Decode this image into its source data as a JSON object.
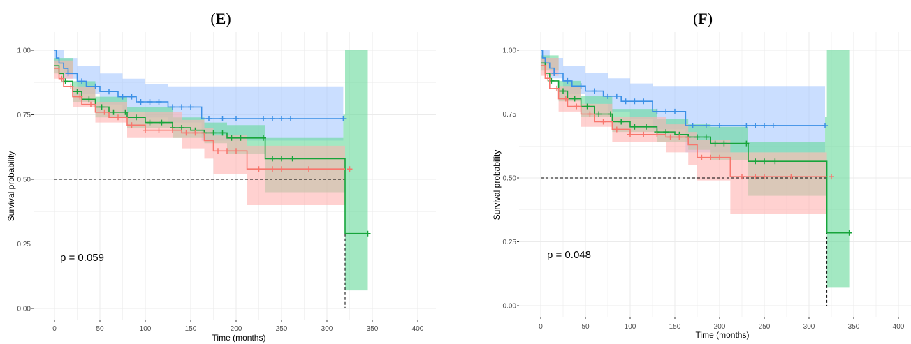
{
  "colors": {
    "red": "#F8766D",
    "green": "#00BA38",
    "blue": "#619CFF",
    "blue_line": "#3A8FE6",
    "green_line": "#17A43B",
    "red_fill": "#FFB3B0",
    "green_fill": "#66D999",
    "blue_fill": "#A6C8FF",
    "grid": "#EBEBEB"
  },
  "chart_data": [
    {
      "panel": "(E)",
      "panel_letter": "E",
      "type": "line",
      "xlabel": "Time (months)",
      "ylabel": "Survival probability",
      "xlim": [
        0,
        400
      ],
      "ylim": [
        0,
        1
      ],
      "x_ticks": [
        "0",
        "50",
        "100",
        "150",
        "200",
        "250",
        "300",
        "350",
        "400"
      ],
      "y_ticks": [
        "0.00",
        "0.25",
        "0.50",
        "0.75",
        "1.00"
      ],
      "annotation": "p = 0.059",
      "median_line": {
        "y": 0.5,
        "x_end": 320
      },
      "grid": true,
      "series": [
        {
          "color_key": "blue",
          "steps": [
            [
              0,
              1.0
            ],
            [
              2,
              0.97
            ],
            [
              5,
              0.95
            ],
            [
              10,
              0.93
            ],
            [
              15,
              0.91
            ],
            [
              25,
              0.88
            ],
            [
              35,
              0.86
            ],
            [
              50,
              0.84
            ],
            [
              70,
              0.82
            ],
            [
              90,
              0.8
            ],
            [
              125,
              0.78
            ],
            [
              162,
              0.735
            ],
            [
              318,
              0.735
            ]
          ],
          "ci_upper": [
            [
              0,
              1.0
            ],
            [
              10,
              0.97
            ],
            [
              25,
              0.94
            ],
            [
              50,
              0.91
            ],
            [
              75,
              0.89
            ],
            [
              100,
              0.87
            ],
            [
              125,
              0.86
            ],
            [
              162,
              0.86
            ],
            [
              318,
              0.86
            ]
          ],
          "ci_lower": [
            [
              0,
              0.95
            ],
            [
              10,
              0.89
            ],
            [
              25,
              0.83
            ],
            [
              50,
              0.79
            ],
            [
              75,
              0.76
            ],
            [
              100,
              0.74
            ],
            [
              125,
              0.72
            ],
            [
              162,
              0.65
            ],
            [
              318,
              0.64
            ]
          ],
          "censor_x": [
            15,
            30,
            45,
            60,
            75,
            85,
            95,
            105,
            115,
            130,
            140,
            150,
            170,
            185,
            200,
            230,
            240,
            250,
            260,
            318
          ]
        },
        {
          "color_key": "green",
          "steps": [
            [
              0,
              0.94
            ],
            [
              5,
              0.91
            ],
            [
              10,
              0.88
            ],
            [
              20,
              0.84
            ],
            [
              30,
              0.81
            ],
            [
              45,
              0.78
            ],
            [
              60,
              0.76
            ],
            [
              80,
              0.74
            ],
            [
              100,
              0.72
            ],
            [
              130,
              0.7
            ],
            [
              150,
              0.69
            ],
            [
              165,
              0.68
            ],
            [
              190,
              0.66
            ],
            [
              232,
              0.58
            ],
            [
              318,
              0.58
            ],
            [
              320,
              0.29
            ],
            [
              345,
              0.29
            ]
          ],
          "ci_upper": [
            [
              0,
              0.97
            ],
            [
              20,
              0.88
            ],
            [
              45,
              0.82
            ],
            [
              80,
              0.78
            ],
            [
              130,
              0.74
            ],
            [
              165,
              0.72
            ],
            [
              190,
              0.71
            ],
            [
              232,
              0.66
            ],
            [
              318,
              0.75
            ],
            [
              320,
              1.0
            ],
            [
              345,
              1.0
            ]
          ],
          "ci_lower": [
            [
              0,
              0.91
            ],
            [
              20,
              0.8
            ],
            [
              45,
              0.74
            ],
            [
              80,
              0.7
            ],
            [
              130,
              0.66
            ],
            [
              165,
              0.64
            ],
            [
              190,
              0.6
            ],
            [
              232,
              0.45
            ],
            [
              318,
              0.45
            ],
            [
              320,
              0.07
            ],
            [
              345,
              0.07
            ]
          ],
          "censor_x": [
            12,
            25,
            38,
            52,
            65,
            78,
            90,
            105,
            118,
            130,
            140,
            155,
            165,
            175,
            185,
            195,
            205,
            230,
            240,
            250,
            262,
            345
          ]
        },
        {
          "color_key": "red",
          "steps": [
            [
              0,
              0.93
            ],
            [
              5,
              0.89
            ],
            [
              10,
              0.86
            ],
            [
              20,
              0.82
            ],
            [
              30,
              0.79
            ],
            [
              45,
              0.76
            ],
            [
              60,
              0.74
            ],
            [
              80,
              0.71
            ],
            [
              100,
              0.69
            ],
            [
              140,
              0.68
            ],
            [
              165,
              0.65
            ],
            [
              175,
              0.61
            ],
            [
              212,
              0.54
            ],
            [
              320,
              0.54
            ]
          ],
          "ci_upper": [
            [
              0,
              0.96
            ],
            [
              20,
              0.86
            ],
            [
              45,
              0.8
            ],
            [
              80,
              0.76
            ],
            [
              140,
              0.73
            ],
            [
              165,
              0.7
            ],
            [
              175,
              0.67
            ],
            [
              212,
              0.63
            ],
            [
              320,
              0.67
            ]
          ],
          "ci_lower": [
            [
              0,
              0.89
            ],
            [
              20,
              0.78
            ],
            [
              45,
              0.72
            ],
            [
              80,
              0.66
            ],
            [
              140,
              0.62
            ],
            [
              165,
              0.58
            ],
            [
              175,
              0.52
            ],
            [
              212,
              0.4
            ],
            [
              320,
              0.4
            ]
          ],
          "censor_x": [
            8,
            18,
            28,
            40,
            55,
            70,
            85,
            100,
            115,
            130,
            145,
            155,
            180,
            190,
            200,
            225,
            240,
            250,
            280,
            325
          ]
        }
      ]
    },
    {
      "panel": "(F)",
      "panel_letter": "F",
      "type": "line",
      "xlabel": "Time (months)",
      "ylabel": "Survival probability",
      "xlim": [
        0,
        400
      ],
      "ylim": [
        0,
        1
      ],
      "x_ticks": [
        "0",
        "50",
        "100",
        "150",
        "200",
        "250",
        "300",
        "350",
        "400"
      ],
      "y_ticks": [
        "0.00",
        "0.25",
        "0.50",
        "0.75",
        "1.00"
      ],
      "annotation": "p = 0.048",
      "median_line": {
        "y": 0.5,
        "x_end": 320
      },
      "grid": true,
      "series": [
        {
          "color_key": "blue",
          "steps": [
            [
              0,
              1.0
            ],
            [
              2,
              0.97
            ],
            [
              5,
              0.95
            ],
            [
              10,
              0.93
            ],
            [
              15,
              0.91
            ],
            [
              25,
              0.88
            ],
            [
              35,
              0.86
            ],
            [
              50,
              0.84
            ],
            [
              70,
              0.82
            ],
            [
              90,
              0.8
            ],
            [
              125,
              0.76
            ],
            [
              162,
              0.705
            ],
            [
              318,
              0.705
            ]
          ],
          "ci_upper": [
            [
              0,
              1.0
            ],
            [
              10,
              0.97
            ],
            [
              25,
              0.94
            ],
            [
              50,
              0.91
            ],
            [
              75,
              0.89
            ],
            [
              100,
              0.87
            ],
            [
              125,
              0.86
            ],
            [
              162,
              0.86
            ],
            [
              318,
              0.86
            ]
          ],
          "ci_lower": [
            [
              0,
              0.95
            ],
            [
              10,
              0.89
            ],
            [
              25,
              0.83
            ],
            [
              50,
              0.79
            ],
            [
              75,
              0.76
            ],
            [
              100,
              0.73
            ],
            [
              125,
              0.69
            ],
            [
              162,
              0.6
            ],
            [
              318,
              0.58
            ]
          ],
          "censor_x": [
            15,
            30,
            45,
            60,
            75,
            85,
            95,
            105,
            115,
            130,
            140,
            150,
            170,
            185,
            200,
            230,
            240,
            250,
            260,
            318
          ]
        },
        {
          "color_key": "green",
          "steps": [
            [
              0,
              0.95
            ],
            [
              5,
              0.91
            ],
            [
              10,
              0.88
            ],
            [
              20,
              0.84
            ],
            [
              30,
              0.81
            ],
            [
              45,
              0.78
            ],
            [
              60,
              0.75
            ],
            [
              80,
              0.72
            ],
            [
              100,
              0.7
            ],
            [
              130,
              0.68
            ],
            [
              150,
              0.67
            ],
            [
              165,
              0.66
            ],
            [
              190,
              0.635
            ],
            [
              232,
              0.565
            ],
            [
              318,
              0.565
            ],
            [
              320,
              0.285
            ],
            [
              345,
              0.285
            ]
          ],
          "ci_upper": [
            [
              0,
              0.98
            ],
            [
              20,
              0.88
            ],
            [
              45,
              0.82
            ],
            [
              80,
              0.77
            ],
            [
              130,
              0.73
            ],
            [
              165,
              0.71
            ],
            [
              190,
              0.7
            ],
            [
              232,
              0.64
            ],
            [
              318,
              0.74
            ],
            [
              320,
              1.0
            ],
            [
              345,
              1.0
            ]
          ],
          "ci_lower": [
            [
              0,
              0.92
            ],
            [
              20,
              0.8
            ],
            [
              45,
              0.74
            ],
            [
              80,
              0.68
            ],
            [
              130,
              0.64
            ],
            [
              165,
              0.61
            ],
            [
              190,
              0.57
            ],
            [
              232,
              0.43
            ],
            [
              318,
              0.43
            ],
            [
              320,
              0.07
            ],
            [
              345,
              0.07
            ]
          ],
          "censor_x": [
            12,
            25,
            38,
            52,
            65,
            78,
            90,
            105,
            118,
            130,
            140,
            155,
            165,
            175,
            185,
            195,
            205,
            230,
            240,
            250,
            262,
            345
          ]
        },
        {
          "color_key": "red",
          "steps": [
            [
              0,
              0.94
            ],
            [
              5,
              0.89
            ],
            [
              10,
              0.85
            ],
            [
              20,
              0.81
            ],
            [
              30,
              0.78
            ],
            [
              45,
              0.75
            ],
            [
              60,
              0.72
            ],
            [
              80,
              0.69
            ],
            [
              100,
              0.67
            ],
            [
              140,
              0.66
            ],
            [
              165,
              0.63
            ],
            [
              175,
              0.58
            ],
            [
              212,
              0.505
            ],
            [
              320,
              0.505
            ]
          ],
          "ci_upper": [
            [
              0,
              0.97
            ],
            [
              20,
              0.86
            ],
            [
              45,
              0.79
            ],
            [
              80,
              0.74
            ],
            [
              140,
              0.71
            ],
            [
              165,
              0.68
            ],
            [
              175,
              0.65
            ],
            [
              212,
              0.6
            ],
            [
              320,
              0.65
            ]
          ],
          "ci_lower": [
            [
              0,
              0.9
            ],
            [
              20,
              0.76
            ],
            [
              45,
              0.7
            ],
            [
              80,
              0.64
            ],
            [
              140,
              0.6
            ],
            [
              165,
              0.55
            ],
            [
              175,
              0.49
            ],
            [
              212,
              0.36
            ],
            [
              320,
              0.36
            ]
          ],
          "censor_x": [
            8,
            18,
            28,
            40,
            55,
            70,
            85,
            100,
            115,
            130,
            145,
            155,
            180,
            190,
            200,
            225,
            240,
            250,
            280,
            325
          ]
        }
      ]
    }
  ]
}
